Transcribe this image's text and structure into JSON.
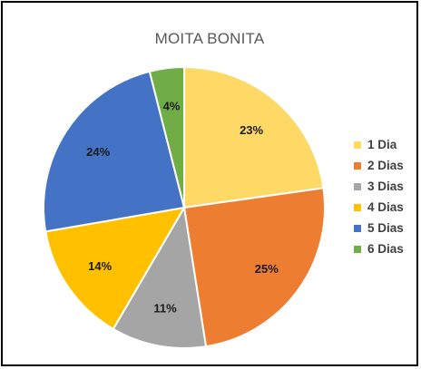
{
  "chart_data": {
    "type": "pie",
    "title": "MOITA BONITA",
    "categories": [
      "1 Dia",
      "2 Dias",
      "3 Dias",
      "4 Dias",
      "5 Dias",
      "6 Dias"
    ],
    "values": [
      23,
      25,
      11,
      14,
      24,
      4
    ],
    "data_labels": [
      "23%",
      "25%",
      "11%",
      "14%",
      "24%",
      "4%"
    ],
    "colors": [
      "#FFD966",
      "#ED7D31",
      "#A5A5A5",
      "#FFC000",
      "#4472C4",
      "#70AD47"
    ],
    "legend_position": "right",
    "start_angle": "12 o'clock",
    "direction": "clockwise"
  }
}
